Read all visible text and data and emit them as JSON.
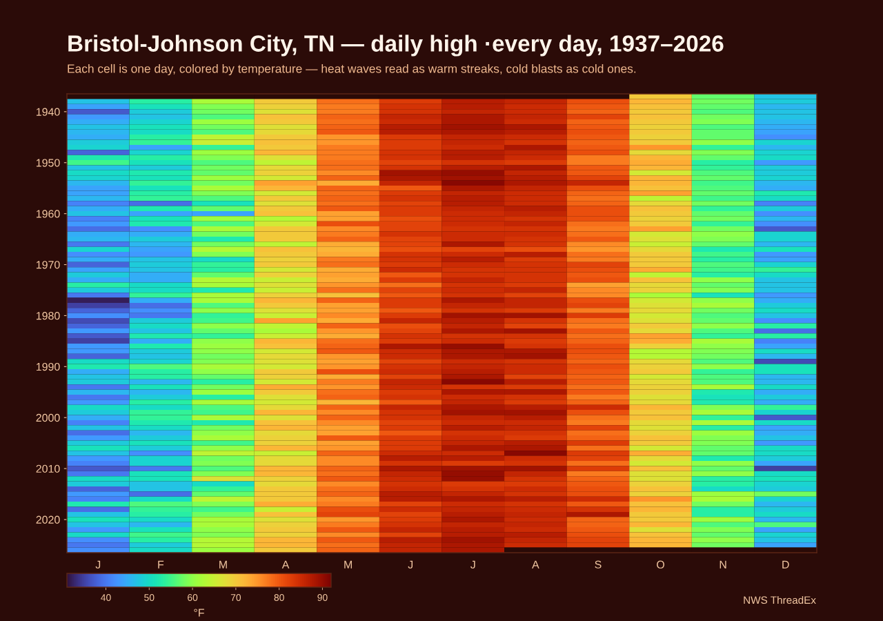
{
  "chart_data": {
    "type": "heatmap",
    "title": "Bristol-Johnson City, TN — daily high ·every day, 1937–2026",
    "subtitle": "Each cell is one day, colored by temperature — heat waves read as warm streaks, cold blasts as cold ones.",
    "categories": [
      "J",
      "F",
      "M",
      "A",
      "M",
      "J",
      "J",
      "A",
      "S",
      "O",
      "N",
      "D"
    ],
    "y_categories": [
      null,
      null,
      null,
      "1940",
      null,
      null,
      null,
      null,
      null,
      null,
      null,
      null,
      null,
      "1950",
      null,
      null,
      null,
      null,
      null,
      null,
      null,
      null,
      null,
      "1960",
      null,
      null,
      null,
      null,
      null,
      null,
      null,
      null,
      null,
      "1970",
      null,
      null,
      null,
      null,
      null,
      null,
      null,
      null,
      null,
      "1980",
      null,
      null,
      null,
      null,
      null,
      null,
      null,
      null,
      null,
      "1990",
      null,
      null,
      null,
      null,
      null,
      null,
      null,
      null,
      null,
      "2000",
      null,
      null,
      null,
      null,
      null,
      null,
      null,
      null,
      null,
      "2010",
      null,
      null,
      null,
      null,
      null,
      null,
      null,
      null,
      null,
      "2020",
      null,
      null,
      null,
      null,
      null,
      null
    ],
    "cells": [
      [
        null,
        null,
        null,
        null,
        null,
        null,
        null,
        null,
        null,
        70,
        57,
        47
      ],
      [
        47,
        53,
        62,
        70,
        78,
        83,
        87,
        86,
        81,
        72,
        58,
        48
      ],
      [
        44,
        51,
        59,
        69,
        77,
        84,
        87,
        85,
        80,
        71,
        57,
        46
      ],
      [
        37,
        48,
        58,
        67,
        77,
        84,
        86,
        85,
        79,
        70,
        56,
        47
      ],
      [
        43,
        47,
        56,
        71,
        79,
        86,
        88,
        86,
        82,
        71,
        58,
        47
      ],
      [
        45,
        49,
        61,
        70,
        78,
        85,
        88,
        85,
        79,
        70,
        59,
        46
      ],
      [
        47,
        51,
        58,
        67,
        79,
        87,
        89,
        88,
        80,
        69,
        56,
        45
      ],
      [
        46,
        50,
        56,
        68,
        80,
        87,
        88,
        87,
        81,
        70,
        57,
        44
      ],
      [
        45,
        53,
        64,
        70,
        75,
        83,
        86,
        85,
        80,
        69,
        57,
        42
      ],
      [
        48,
        54,
        65,
        71,
        75,
        83,
        86,
        84,
        79,
        70,
        60,
        49
      ],
      [
        49,
        44,
        54,
        70,
        77,
        83,
        85,
        88,
        80,
        75,
        54,
        46
      ],
      [
        38,
        49,
        61,
        72,
        77,
        84,
        87,
        86,
        81,
        68,
        59,
        49
      ],
      [
        52,
        53,
        59,
        67,
        77,
        84,
        87,
        85,
        77,
        72,
        57,
        50
      ],
      [
        55,
        51,
        56,
        64,
        78,
        82,
        84,
        83,
        77,
        73,
        53,
        43
      ],
      [
        47,
        48,
        58,
        68,
        78,
        84,
        87,
        88,
        80,
        72,
        54,
        48
      ],
      [
        50,
        52,
        57,
        69,
        76,
        89,
        90,
        86,
        80,
        66,
        56,
        48
      ],
      [
        49,
        51,
        61,
        66,
        79,
        88,
        89,
        87,
        82,
        72,
        57,
        49
      ],
      [
        46,
        54,
        58,
        74,
        73,
        86,
        91,
        88,
        86,
        72,
        55,
        46
      ],
      [
        44,
        51,
        62,
        72,
        79,
        80,
        88,
        86,
        81,
        71,
        56,
        45
      ],
      [
        44,
        53,
        59,
        66,
        78,
        83,
        86,
        85,
        79,
        74,
        57,
        52
      ],
      [
        46,
        54,
        56,
        70,
        79,
        84,
        87,
        85,
        78,
        64,
        55,
        50
      ],
      [
        41,
        39,
        51,
        67,
        78,
        82,
        87,
        85,
        79,
        68,
        58,
        41
      ],
      [
        45,
        52,
        57,
        70,
        80,
        83,
        86,
        87,
        81,
        71,
        54,
        48
      ],
      [
        47,
        44,
        44,
        71,
        74,
        83,
        85,
        86,
        81,
        70,
        57,
        42
      ],
      [
        41,
        51,
        61,
        63,
        74,
        81,
        85,
        84,
        81,
        69,
        58,
        46
      ],
      [
        43,
        52,
        56,
        66,
        81,
        82,
        85,
        86,
        78,
        70,
        54,
        42
      ],
      [
        39,
        42,
        62,
        70,
        76,
        82,
        84,
        84,
        77,
        74,
        58,
        37
      ],
      [
        45,
        45,
        58,
        70,
        77,
        84,
        85,
        85,
        78,
        66,
        60,
        49
      ],
      [
        46,
        48,
        52,
        70,
        79,
        82,
        85,
        84,
        80,
        67,
        59,
        49
      ],
      [
        40,
        46,
        58,
        64,
        73,
        82,
        88,
        84,
        76,
        65,
        57,
        46
      ],
      [
        49,
        44,
        63,
        71,
        72,
        81,
        82,
        81,
        75,
        68,
        52,
        51
      ],
      [
        42,
        43,
        59,
        70,
        73,
        84,
        85,
        87,
        78,
        70,
        55,
        43
      ],
      [
        45,
        47,
        50,
        69,
        77,
        84,
        87,
        83,
        77,
        70,
        53,
        44
      ],
      [
        38,
        48,
        54,
        70,
        78,
        83,
        85,
        84,
        82,
        70,
        56,
        49
      ],
      [
        44,
        47,
        53,
        66,
        73,
        85,
        84,
        84,
        81,
        73,
        55,
        54
      ],
      [
        48,
        45,
        57,
        69,
        74,
        80,
        84,
        84,
        80,
        64,
        53,
        50
      ],
      [
        45,
        45,
        63,
        65,
        73,
        83,
        86,
        84,
        81,
        71,
        60,
        47
      ],
      [
        53,
        50,
        62,
        67,
        75,
        78,
        84,
        83,
        74,
        68,
        57,
        47
      ],
      [
        48,
        50,
        52,
        65,
        78,
        82,
        85,
        86,
        76,
        69,
        59,
        47
      ],
      [
        40,
        54,
        62,
        69,
        71,
        80,
        84,
        82,
        76,
        62,
        51,
        43
      ],
      [
        32,
        45,
        62,
        72,
        79,
        83,
        88,
        86,
        81,
        66,
        60,
        45
      ],
      [
        35,
        39,
        56,
        70,
        74,
        83,
        86,
        86,
        82,
        67,
        62,
        48
      ],
      [
        38,
        42,
        60,
        67,
        74,
        80,
        84,
        83,
        77,
        68,
        58,
        50
      ],
      [
        42,
        40,
        54,
        65,
        76,
        83,
        89,
        89,
        83,
        66,
        56,
        47
      ],
      [
        36,
        48,
        55,
        74,
        73,
        86,
        87,
        84,
        78,
        67,
        57,
        42
      ],
      [
        38,
        50,
        60,
        64,
        79,
        81,
        86,
        82,
        77,
        70,
        60,
        53
      ],
      [
        43,
        47,
        57,
        62,
        75,
        82,
        88,
        89,
        80,
        68,
        56,
        39
      ],
      [
        37,
        52,
        54,
        65,
        73,
        84,
        84,
        84,
        78,
        74,
        54,
        53
      ],
      [
        35,
        45,
        60,
        72,
        78,
        83,
        85,
        83,
        79,
        73,
        62,
        41
      ],
      [
        43,
        52,
        61,
        71,
        79,
        88,
        90,
        84,
        81,
        69,
        60,
        44
      ],
      [
        43,
        48,
        60,
        66,
        80,
        85,
        88,
        88,
        81,
        63,
        59,
        50
      ],
      [
        38,
        47,
        58,
        68,
        75,
        85,
        88,
        89,
        80,
        63,
        58,
        46
      ],
      [
        50,
        49,
        59,
        67,
        74,
        82,
        85,
        84,
        79,
        68,
        56,
        36
      ],
      [
        52,
        56,
        62,
        66,
        75,
        84,
        86,
        85,
        81,
        69,
        60,
        51
      ],
      [
        45,
        53,
        60,
        70,
        81,
        85,
        87,
        85,
        80,
        70,
        54,
        51
      ],
      [
        47,
        53,
        57,
        69,
        73,
        82,
        88,
        82,
        79,
        66,
        56,
        46
      ],
      [
        48,
        46,
        53,
        66,
        77,
        86,
        91,
        87,
        80,
        68,
        56,
        46
      ],
      [
        40,
        51,
        58,
        73,
        75,
        85,
        84,
        83,
        78,
        69,
        62,
        50
      ],
      [
        46,
        46,
        61,
        70,
        78,
        83,
        88,
        88,
        80,
        69,
        52,
        45
      ],
      [
        40,
        48,
        53,
        67,
        79,
        84,
        85,
        84,
        77,
        67,
        51,
        48
      ],
      [
        43,
        53,
        62,
        66,
        72,
        80,
        86,
        83,
        79,
        68,
        52,
        45
      ],
      [
        50,
        50,
        56,
        68,
        79,
        86,
        88,
        87,
        85,
        72,
        59,
        54
      ],
      [
        48,
        54,
        55,
        72,
        76,
        84,
        89,
        89,
        81,
        70,
        62,
        49
      ],
      [
        45,
        54,
        62,
        67,
        79,
        84,
        86,
        87,
        78,
        71,
        54,
        37
      ],
      [
        41,
        52,
        52,
        71,
        76,
        82,
        85,
        85,
        77,
        68,
        62,
        50
      ],
      [
        47,
        50,
        58,
        72,
        74,
        83,
        87,
        86,
        82,
        67,
        53,
        44
      ],
      [
        39,
        46,
        60,
        68,
        74,
        80,
        84,
        84,
        78,
        69,
        61,
        45
      ],
      [
        43,
        48,
        62,
        69,
        80,
        83,
        85,
        83,
        79,
        71,
        59,
        47
      ],
      [
        48,
        51,
        55,
        69,
        74,
        83,
        86,
        87,
        83,
        70,
        59,
        43
      ],
      [
        51,
        48,
        60,
        72,
        75,
        83,
        88,
        88,
        78,
        66,
        57,
        50
      ],
      [
        47,
        42,
        64,
        65,
        79,
        85,
        85,
        91,
        83,
        73,
        57,
        50
      ],
      [
        43,
        49,
        58,
        68,
        76,
        87,
        87,
        85,
        82,
        68,
        52,
        48
      ],
      [
        41,
        49,
        59,
        68,
        76,
        84,
        83,
        84,
        78,
        66,
        60,
        44
      ],
      [
        37,
        40,
        56,
        72,
        79,
        88,
        89,
        89,
        83,
        71,
        57,
        35
      ],
      [
        40,
        51,
        59,
        72,
        78,
        86,
        90,
        86,
        77,
        67,
        60,
        50
      ],
      [
        50,
        51,
        67,
        69,
        80,
        85,
        90,
        84,
        79,
        67,
        53,
        51
      ],
      [
        48,
        47,
        50,
        68,
        76,
        84,
        83,
        83,
        80,
        69,
        53,
        49
      ],
      [
        38,
        47,
        54,
        70,
        78,
        85,
        84,
        85,
        81,
        71,
        50,
        48
      ],
      [
        43,
        39,
        57,
        70,
        79,
        87,
        86,
        84,
        81,
        69,
        61,
        58
      ],
      [
        41,
        50,
        64,
        70,
        76,
        87,
        88,
        87,
        85,
        75,
        62,
        49
      ],
      [
        52,
        56,
        59,
        73,
        77,
        82,
        85,
        84,
        80,
        71,
        58,
        46
      ],
      [
        39,
        54,
        55,
        65,
        81,
        85,
        86,
        85,
        84,
        72,
        53,
        48
      ],
      [
        47,
        53,
        58,
        71,
        82,
        82,
        87,
        86,
        88,
        70,
        53,
        50
      ],
      [
        51,
        50,
        62,
        67,
        75,
        83,
        88,
        85,
        79,
        70,
        61,
        46
      ],
      [
        47,
        46,
        62,
        69,
        77,
        84,
        86,
        86,
        79,
        72,
        56,
        56
      ],
      [
        43,
        51,
        60,
        70,
        80,
        86,
        87,
        85,
        80,
        67,
        59,
        44
      ],
      [
        50,
        55,
        59,
        69,
        76,
        82,
        87,
        87,
        81,
        71,
        57,
        49
      ],
      [
        42,
        53,
        63,
        72,
        80,
        87,
        89,
        86,
        82,
        72,
        60,
        47
      ],
      [
        40,
        48,
        63,
        72,
        78,
        86,
        88,
        85,
        82,
        72,
        58,
        44
      ],
      [
        42,
        50,
        61,
        70,
        79,
        86,
        88,
        null,
        null,
        null,
        null,
        null
      ]
    ],
    "clim": [
      31,
      92
    ],
    "cticks": [
      40,
      50,
      60,
      70,
      80,
      90
    ],
    "clabel": "°F",
    "annotations": [
      "NWS ThreadEx"
    ]
  }
}
